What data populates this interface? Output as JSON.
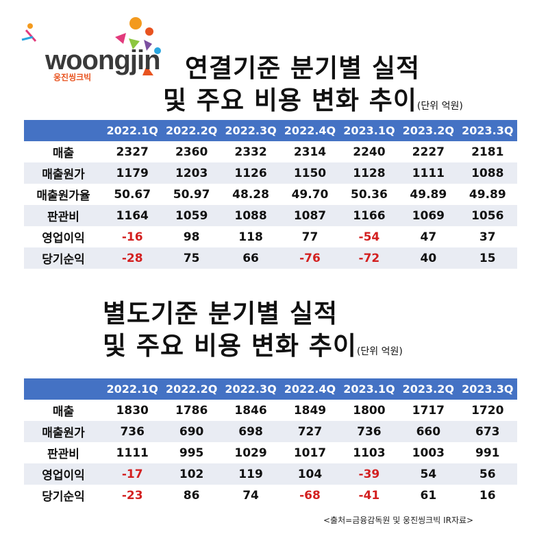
{
  "logo": {
    "word": "woongjin",
    "sub": "웅진씽크빅"
  },
  "section1": {
    "title_line1": "연결기준 분기별 실적",
    "title_line2": "및 주요 비용 변화 추이",
    "unit": "(단위 억원)",
    "headers": [
      "",
      "2022.1Q",
      "2022.2Q",
      "2022.3Q",
      "2022.4Q",
      "2023.1Q",
      "2023.2Q",
      "2023.3Q"
    ],
    "rows": [
      {
        "label": "매출",
        "values": [
          "2327",
          "2360",
          "2332",
          "2314",
          "2240",
          "2227",
          "2181"
        ]
      },
      {
        "label": "매출원가",
        "values": [
          "1179",
          "1203",
          "1126",
          "1150",
          "1128",
          "1111",
          "1088"
        ]
      },
      {
        "label": "매출원가율",
        "values": [
          "50.67",
          "50.97",
          "48.28",
          "49.70",
          "50.36",
          "49.89",
          "49.89"
        ]
      },
      {
        "label": "판관비",
        "values": [
          "1164",
          "1059",
          "1088",
          "1087",
          "1166",
          "1069",
          "1056"
        ]
      },
      {
        "label": "영업이익",
        "values": [
          "-16",
          "98",
          "118",
          "77",
          "-54",
          "47",
          "37"
        ]
      },
      {
        "label": "당기순익",
        "values": [
          "-28",
          "75",
          "66",
          "-76",
          "-72",
          "40",
          "15"
        ]
      }
    ]
  },
  "section2": {
    "title_line1": "별도기준 분기별 실적",
    "title_line2": "및 주요 비용 변화 추이",
    "unit": "(단위 억원)",
    "headers": [
      "",
      "2022.1Q",
      "2022.2Q",
      "2022.3Q",
      "2022.4Q",
      "2023.1Q",
      "2023.2Q",
      "2023.3Q"
    ],
    "rows": [
      {
        "label": "매출",
        "values": [
          "1830",
          "1786",
          "1846",
          "1849",
          "1800",
          "1717",
          "1720"
        ]
      },
      {
        "label": "매출원가",
        "values": [
          "736",
          "690",
          "698",
          "727",
          "736",
          "660",
          "673"
        ]
      },
      {
        "label": "판관비",
        "values": [
          "1111",
          "995",
          "1029",
          "1017",
          "1103",
          "1003",
          "991"
        ]
      },
      {
        "label": "영업이익",
        "values": [
          "-17",
          "102",
          "119",
          "104",
          "-39",
          "54",
          "56"
        ]
      },
      {
        "label": "당기순익",
        "values": [
          "-23",
          "86",
          "74",
          "-68",
          "-41",
          "61",
          "16"
        ]
      }
    ]
  },
  "source": "<출처=금융감독원 및 웅진씽크빅 IR자료>",
  "colors": {
    "header_bg": "#4472c4",
    "negative": "#d32020",
    "row_alt": "#e9ecf3"
  },
  "chart_data": [
    {
      "type": "table",
      "title": "연결기준 분기별 실적 및 주요 비용 변화 추이",
      "categories": [
        "2022.1Q",
        "2022.2Q",
        "2022.3Q",
        "2022.4Q",
        "2023.1Q",
        "2023.2Q",
        "2023.3Q"
      ],
      "series": [
        {
          "name": "매출",
          "values": [
            2327,
            2360,
            2332,
            2314,
            2240,
            2227,
            2181
          ]
        },
        {
          "name": "매출원가",
          "values": [
            1179,
            1203,
            1126,
            1150,
            1128,
            1111,
            1088
          ]
        },
        {
          "name": "매출원가율",
          "values": [
            50.67,
            50.97,
            48.28,
            49.7,
            50.36,
            49.89,
            49.89
          ]
        },
        {
          "name": "판관비",
          "values": [
            1164,
            1059,
            1088,
            1087,
            1166,
            1069,
            1056
          ]
        },
        {
          "name": "영업이익",
          "values": [
            -16,
            98,
            118,
            77,
            -54,
            47,
            37
          ]
        },
        {
          "name": "당기순익",
          "values": [
            -28,
            75,
            66,
            -76,
            -72,
            40,
            15
          ]
        }
      ]
    },
    {
      "type": "table",
      "title": "별도기준 분기별 실적 및 주요 비용 변화 추이",
      "categories": [
        "2022.1Q",
        "2022.2Q",
        "2022.3Q",
        "2022.4Q",
        "2023.1Q",
        "2023.2Q",
        "2023.3Q"
      ],
      "series": [
        {
          "name": "매출",
          "values": [
            1830,
            1786,
            1846,
            1849,
            1800,
            1717,
            1720
          ]
        },
        {
          "name": "매출원가",
          "values": [
            736,
            690,
            698,
            727,
            736,
            660,
            673
          ]
        },
        {
          "name": "판관비",
          "values": [
            1111,
            995,
            1029,
            1017,
            1103,
            1003,
            991
          ]
        },
        {
          "name": "영업이익",
          "values": [
            -17,
            102,
            119,
            104,
            -39,
            54,
            56
          ]
        },
        {
          "name": "당기순익",
          "values": [
            -23,
            86,
            74,
            -68,
            -41,
            61,
            16
          ]
        }
      ]
    }
  ]
}
